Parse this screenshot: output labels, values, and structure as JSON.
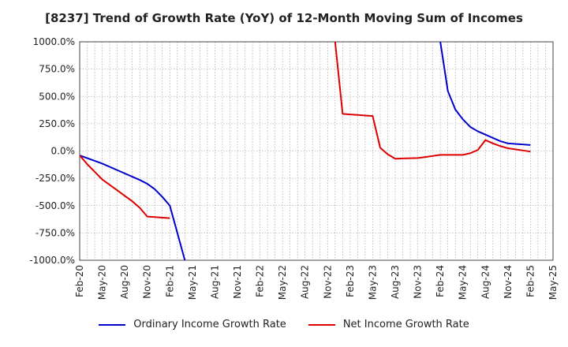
{
  "chart_data": {
    "type": "line",
    "title": "[8237]  Trend of Growth Rate (YoY) of 12-Month Moving Sum of Incomes",
    "xlabel": "",
    "ylabel": "",
    "ylim": [
      -1000,
      1000
    ],
    "yticks": [
      1000,
      750,
      500,
      250,
      0,
      -250,
      -500,
      -750,
      -1000
    ],
    "ytick_labels": [
      "1000.0%",
      "750.0%",
      "500.0%",
      "250.0%",
      "0.0%",
      "-250.0%",
      "-500.0%",
      "-750.0%",
      "-1000.0%"
    ],
    "xtick_labels": [
      "Feb-20",
      "May-20",
      "Aug-20",
      "Nov-20",
      "Feb-21",
      "May-21",
      "Aug-21",
      "Nov-21",
      "Feb-22",
      "May-22",
      "Aug-22",
      "Nov-22",
      "Feb-23",
      "May-23",
      "Aug-23",
      "Nov-23",
      "Feb-24",
      "May-24",
      "Aug-24",
      "Nov-24",
      "Feb-25",
      "May-25"
    ],
    "grid": true,
    "legend_position": "bottom",
    "series": [
      {
        "name": "Ordinary Income Growth Rate",
        "color": "#0000cc",
        "points": [
          [
            "2020-02",
            -40
          ],
          [
            "2020-03",
            -65
          ],
          [
            "2020-04",
            -90
          ],
          [
            "2020-05",
            -115
          ],
          [
            "2020-06",
            -145
          ],
          [
            "2020-07",
            -175
          ],
          [
            "2020-08",
            -205
          ],
          [
            "2020-09",
            -235
          ],
          [
            "2020-10",
            -265
          ],
          [
            "2020-11",
            -300
          ],
          [
            "2020-12",
            -350
          ],
          [
            "2021-01",
            -420
          ],
          [
            "2021-02",
            -500
          ],
          [
            "2021-03",
            -750
          ],
          [
            "2021-04",
            -1000
          ]
        ],
        "segments_after": [
          [
            "2024-02",
            1000
          ],
          [
            "2024-03",
            550
          ],
          [
            "2024-04",
            380
          ],
          [
            "2024-05",
            290
          ],
          [
            "2024-06",
            220
          ],
          [
            "2024-07",
            180
          ],
          [
            "2024-08",
            150
          ],
          [
            "2024-09",
            120
          ],
          [
            "2024-10",
            90
          ],
          [
            "2024-11",
            70
          ],
          [
            "2024-12",
            65
          ],
          [
            "2025-01",
            60
          ],
          [
            "2025-02",
            55
          ]
        ]
      },
      {
        "name": "Net Income Growth Rate",
        "color": "#dd0000",
        "points": [
          [
            "2020-02",
            -40
          ],
          [
            "2020-03",
            -120
          ],
          [
            "2020-04",
            -190
          ],
          [
            "2020-05",
            -260
          ],
          [
            "2020-06",
            -310
          ],
          [
            "2020-07",
            -360
          ],
          [
            "2020-08",
            -410
          ],
          [
            "2020-09",
            -460
          ],
          [
            "2020-10",
            -520
          ],
          [
            "2020-11",
            -600
          ],
          [
            "2020-12",
            -605
          ],
          [
            "2021-01",
            -610
          ],
          [
            "2021-02",
            -615
          ]
        ],
        "segments_after": [
          [
            "2022-12",
            1000
          ],
          [
            "2023-01",
            340
          ],
          [
            "2023-02",
            335
          ],
          [
            "2023-03",
            330
          ],
          [
            "2023-04",
            325
          ],
          [
            "2023-05",
            320
          ],
          [
            "2023-06",
            30
          ],
          [
            "2023-07",
            -30
          ],
          [
            "2023-08",
            -70
          ],
          [
            "2023-09",
            -68
          ],
          [
            "2023-10",
            -66
          ],
          [
            "2023-11",
            -64
          ],
          [
            "2023-12",
            -55
          ],
          [
            "2024-01",
            -45
          ],
          [
            "2024-02",
            -35
          ],
          [
            "2024-03",
            -35
          ],
          [
            "2024-04",
            -35
          ],
          [
            "2024-05",
            -35
          ],
          [
            "2024-06",
            -20
          ],
          [
            "2024-07",
            10
          ],
          [
            "2024-08",
            100
          ],
          [
            "2024-09",
            70
          ],
          [
            "2024-10",
            45
          ],
          [
            "2024-11",
            25
          ],
          [
            "2024-12",
            15
          ],
          [
            "2025-01",
            5
          ],
          [
            "2025-02",
            -5
          ]
        ]
      }
    ]
  }
}
